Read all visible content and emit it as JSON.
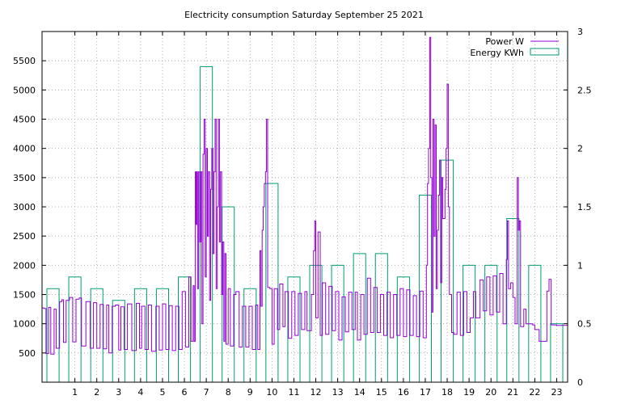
{
  "chart_data": {
    "type": "line",
    "title": "Electricity consumption Saturday September 25 2021",
    "xlabel": "",
    "ylabel": "",
    "y2label": "",
    "xlim": [
      0,
      24
    ],
    "ylim": [
      0,
      6000
    ],
    "y2lim": [
      0,
      3
    ],
    "x_ticks": [
      1,
      2,
      3,
      4,
      5,
      6,
      7,
      8,
      9,
      10,
      11,
      12,
      13,
      14,
      15,
      16,
      17,
      18,
      19,
      20,
      21,
      22,
      23
    ],
    "y_ticks": [
      500,
      1000,
      1500,
      2000,
      2500,
      3000,
      3500,
      4000,
      4500,
      5000,
      5500
    ],
    "y2_ticks": [
      0,
      0.5,
      1,
      1.5,
      2,
      2.5,
      3
    ],
    "grid": true,
    "legend_position": "top-right",
    "colors": {
      "power": "#9400d3",
      "energy": "#009e73"
    },
    "series": [
      {
        "name": "Power W",
        "style": "steps",
        "axis": "y1",
        "points": [
          [
            0.0,
            1270
          ],
          [
            0.1,
            1260
          ],
          [
            0.18,
            490
          ],
          [
            0.3,
            1280
          ],
          [
            0.4,
            480
          ],
          [
            0.55,
            1250
          ],
          [
            0.65,
            580
          ],
          [
            0.8,
            1380
          ],
          [
            0.9,
            1410
          ],
          [
            0.98,
            680
          ],
          [
            1.1,
            1400
          ],
          [
            1.25,
            1450
          ],
          [
            1.4,
            690
          ],
          [
            1.55,
            1420
          ],
          [
            1.7,
            1440
          ],
          [
            1.8,
            620
          ],
          [
            2.0,
            1380
          ],
          [
            2.2,
            580
          ],
          [
            2.35,
            1360
          ],
          [
            2.5,
            580
          ],
          [
            2.65,
            1330
          ],
          [
            2.8,
            570
          ],
          [
            2.95,
            1320
          ],
          [
            3.05,
            500
          ],
          [
            3.2,
            1300
          ],
          [
            3.35,
            1320
          ],
          [
            3.5,
            550
          ],
          [
            3.6,
            1290
          ],
          [
            3.75,
            560
          ],
          [
            3.9,
            1340
          ],
          [
            4.1,
            540
          ],
          [
            4.3,
            1350
          ],
          [
            4.45,
            580
          ],
          [
            4.55,
            1300
          ],
          [
            4.7,
            560
          ],
          [
            4.85,
            1320
          ],
          [
            5.0,
            530
          ],
          [
            5.2,
            1300
          ],
          [
            5.35,
            550
          ],
          [
            5.5,
            1340
          ],
          [
            5.65,
            560
          ],
          [
            5.8,
            1310
          ],
          [
            5.95,
            540
          ],
          [
            6.1,
            1300
          ],
          [
            6.25,
            560
          ],
          [
            6.4,
            1550
          ],
          [
            6.55,
            600
          ],
          [
            6.7,
            1800
          ],
          [
            6.8,
            700
          ],
          [
            6.9,
            1650
          ],
          [
            6.95,
            700
          ],
          [
            7.0,
            3600
          ],
          [
            7.03,
            2700
          ],
          [
            7.06,
            3600
          ],
          [
            7.1,
            1600
          ],
          [
            7.15,
            3600
          ],
          [
            7.2,
            2400
          ],
          [
            7.25,
            3600
          ],
          [
            7.3,
            1000
          ],
          [
            7.35,
            3900
          ],
          [
            7.4,
            4500
          ],
          [
            7.45,
            1800
          ],
          [
            7.5,
            4000
          ],
          [
            7.55,
            2500
          ],
          [
            7.6,
            3600
          ],
          [
            7.65,
            1400
          ],
          [
            7.7,
            3300
          ],
          [
            7.75,
            4000
          ],
          [
            7.8,
            2200
          ],
          [
            7.85,
            3600
          ],
          [
            7.9,
            4500
          ],
          [
            7.95,
            1600
          ],
          [
            8.0,
            3000
          ],
          [
            8.05,
            4500
          ],
          [
            8.1,
            2400
          ],
          [
            8.15,
            3600
          ],
          [
            8.2,
            1500
          ],
          [
            8.25,
            2400
          ],
          [
            8.3,
            700
          ],
          [
            8.35,
            2200
          ],
          [
            8.4,
            650
          ],
          [
            8.5,
            1600
          ],
          [
            8.6,
            620
          ],
          [
            8.75,
            1500
          ],
          [
            8.85,
            1550
          ],
          [
            9.0,
            600
          ],
          [
            9.15,
            1300
          ],
          [
            9.3,
            600
          ],
          [
            9.45,
            1300
          ],
          [
            9.6,
            560
          ],
          [
            9.75,
            1320
          ],
          [
            9.85,
            560
          ],
          [
            9.95,
            2250
          ],
          [
            10.0,
            1300
          ],
          [
            10.05,
            2600
          ],
          [
            10.1,
            3000
          ],
          [
            10.15,
            3400
          ],
          [
            10.2,
            3600
          ],
          [
            10.25,
            4500
          ],
          [
            10.3,
            1620
          ],
          [
            10.4,
            1600
          ],
          [
            10.5,
            650
          ],
          [
            10.6,
            1600
          ],
          [
            10.75,
            900
          ],
          [
            10.85,
            1680
          ],
          [
            11.0,
            950
          ],
          [
            11.1,
            1550
          ],
          [
            11.25,
            750
          ],
          [
            11.4,
            1550
          ],
          [
            11.55,
            800
          ],
          [
            11.7,
            1520
          ],
          [
            11.85,
            900
          ],
          [
            12.0,
            1550
          ],
          [
            12.1,
            880
          ],
          [
            12.3,
            1500
          ],
          [
            12.4,
            2250
          ],
          [
            12.45,
            2760
          ],
          [
            12.5,
            1100
          ],
          [
            12.6,
            2570
          ],
          [
            12.7,
            800
          ],
          [
            12.8,
            1700
          ],
          [
            12.95,
            820
          ],
          [
            13.1,
            1640
          ],
          [
            13.25,
            880
          ],
          [
            13.4,
            1550
          ],
          [
            13.55,
            720
          ],
          [
            13.7,
            1460
          ],
          [
            13.85,
            860
          ],
          [
            14.0,
            1540
          ],
          [
            14.15,
            900
          ],
          [
            14.3,
            1540
          ],
          [
            14.4,
            720
          ],
          [
            14.55,
            1500
          ],
          [
            14.7,
            820
          ],
          [
            14.85,
            1780
          ],
          [
            15.0,
            850
          ],
          [
            15.15,
            1620
          ],
          [
            15.3,
            850
          ],
          [
            15.45,
            1500
          ],
          [
            15.6,
            800
          ],
          [
            15.75,
            1540
          ],
          [
            15.9,
            760
          ],
          [
            16.05,
            1500
          ],
          [
            16.2,
            800
          ],
          [
            16.35,
            1600
          ],
          [
            16.5,
            780
          ],
          [
            16.65,
            1580
          ],
          [
            16.8,
            800
          ],
          [
            16.95,
            1480
          ],
          [
            17.1,
            780
          ],
          [
            17.25,
            1560
          ],
          [
            17.4,
            760
          ],
          [
            17.55,
            2000
          ],
          [
            17.6,
            3400
          ],
          [
            17.65,
            4000
          ],
          [
            17.7,
            5900
          ],
          [
            17.75,
            3500
          ],
          [
            17.8,
            1200
          ],
          [
            17.85,
            4500
          ],
          [
            17.9,
            2500
          ],
          [
            17.95,
            4400
          ],
          [
            18.0,
            1600
          ],
          [
            18.05,
            2600
          ],
          [
            18.1,
            3200
          ],
          [
            18.15,
            3800
          ],
          [
            18.2,
            1700
          ],
          [
            18.25,
            3500
          ],
          [
            18.3,
            2800
          ],
          [
            18.4,
            3300
          ],
          [
            18.45,
            4000
          ],
          [
            18.5,
            5100
          ],
          [
            18.55,
            3000
          ],
          [
            18.6,
            1500
          ],
          [
            18.7,
            850
          ],
          [
            18.8,
            820
          ],
          [
            18.95,
            1540
          ],
          [
            19.1,
            800
          ],
          [
            19.25,
            1550
          ],
          [
            19.4,
            850
          ],
          [
            19.55,
            1100
          ],
          [
            19.7,
            1550
          ],
          [
            19.8,
            1100
          ],
          [
            20.0,
            1750
          ],
          [
            20.15,
            1220
          ],
          [
            20.3,
            1800
          ],
          [
            20.45,
            1150
          ],
          [
            20.6,
            1820
          ],
          [
            20.75,
            1200
          ],
          [
            20.9,
            1860
          ],
          [
            21.05,
            1000
          ],
          [
            21.2,
            2100
          ],
          [
            21.25,
            2760
          ],
          [
            21.3,
            1600
          ],
          [
            21.4,
            1700
          ],
          [
            21.5,
            1450
          ],
          [
            21.6,
            1000
          ],
          [
            21.7,
            3500
          ],
          [
            21.75,
            2600
          ],
          [
            21.8,
            2760
          ],
          [
            21.85,
            950
          ],
          [
            22.0,
            1250
          ],
          [
            22.1,
            1000
          ],
          [
            22.4,
            980
          ],
          [
            22.5,
            900
          ],
          [
            22.7,
            700
          ],
          [
            22.85,
            700
          ],
          [
            23.05,
            1560
          ],
          [
            23.15,
            1760
          ],
          [
            23.25,
            980
          ],
          [
            23.5,
            970
          ],
          [
            24.0,
            970
          ]
        ]
      },
      {
        "name": "Energy KWh",
        "style": "boxes",
        "axis": "y2",
        "hours": [
          0,
          1,
          2,
          3,
          4,
          5,
          6,
          7,
          8,
          9,
          10,
          11,
          12,
          13,
          14,
          15,
          16,
          17,
          18,
          19,
          20,
          21,
          22,
          23
        ],
        "values": [
          0.8,
          0.9,
          0.8,
          0.7,
          0.8,
          0.8,
          0.9,
          2.7,
          1.5,
          0.8,
          1.7,
          0.9,
          1.0,
          1.0,
          1.1,
          1.1,
          0.9,
          1.6,
          1.9,
          1.0,
          1.0,
          1.4,
          1.0,
          0.5
        ]
      }
    ]
  }
}
